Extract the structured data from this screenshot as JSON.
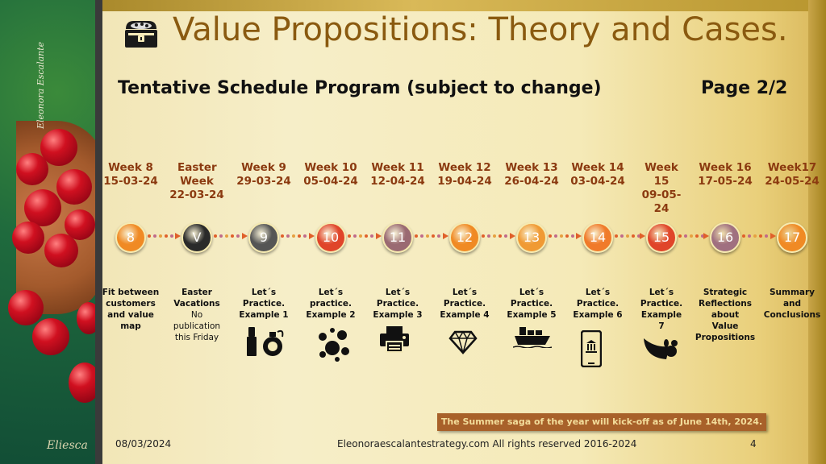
{
  "header": {
    "title": "Value Propositions: Theory and Cases.",
    "title_icon": "treasure-chest-icon",
    "subtitle": "Tentative Schedule Program (subject to change)",
    "page_label": "Page 2/2"
  },
  "sidebar_art": {
    "signature": "Eleonora Escalante",
    "mark": "Eliesca"
  },
  "timeline": [
    {
      "week": "Week 8",
      "date": "15-03-24",
      "badge": "8",
      "color": "#f08a24",
      "lines": [
        "Fit between",
        "customers",
        "and value",
        "map"
      ],
      "icon": ""
    },
    {
      "week": "Easter Week",
      "date": "22-03-24",
      "badge": "V",
      "color": "#2a2a2a",
      "lines": [
        "Easter",
        "Vacations"
      ],
      "note": [
        "No",
        "publication",
        "this Friday"
      ],
      "icon": ""
    },
    {
      "week": "Week 9",
      "date": "29-03-24",
      "badge": "9",
      "color": "#555555",
      "lines": [
        "Let´s",
        "Practice.",
        "Example 1"
      ],
      "icon": "lipstick-perfume-icon"
    },
    {
      "week": "Week 10",
      "date": "05-04-24",
      "badge": "10",
      "color": "#e0452a",
      "lines": [
        "Let´s",
        "practice.",
        "Example 2"
      ],
      "icon": "bubbles-icon"
    },
    {
      "week": "Week 11",
      "date": "12-04-24",
      "badge": "11",
      "color": "#9a6a72",
      "lines": [
        "Let´s",
        "Practice.",
        "Example 3"
      ],
      "icon": "printer-icon"
    },
    {
      "week": "Week 12",
      "date": "19-04-24",
      "badge": "12",
      "color": "#f08a24",
      "lines": [
        "Let´s",
        "Practice.",
        "Example 4"
      ],
      "icon": "diamond-icon"
    },
    {
      "week": "Week 13",
      "date": "26-04-24",
      "badge": "13",
      "color": "#f09a34",
      "lines": [
        "Let´s",
        "Practice.",
        "Example 5"
      ],
      "icon": "cargo-ship-icon"
    },
    {
      "week": "Week 14",
      "date": "03-04-24",
      "badge": "14",
      "color": "#f07a2a",
      "lines": [
        "Let´s",
        "Practice.",
        "Example 6"
      ],
      "icon": "mobile-bank-icon"
    },
    {
      "week": "Week 15",
      "date": "09-05-24",
      "badge": "15",
      "color": "#e0452a",
      "lines": [
        "Let´s",
        "Practice.",
        "Example",
        "7"
      ],
      "icon": "cornucopia-icon"
    },
    {
      "week": "Week 16",
      "date": "17-05-24",
      "badge": "16",
      "color": "#a07080",
      "lines": [
        "Strategic",
        "Reflections",
        "about",
        "Value",
        "Propositions"
      ],
      "icon": ""
    },
    {
      "week": "Week17",
      "date": "24-05-24",
      "badge": "17",
      "color": "#f08a24",
      "lines": [
        "Summary",
        "and",
        "Conclusions"
      ],
      "icon": ""
    }
  ],
  "banner": "The Summer saga of the year will kick-off as of June 14th, 2024.",
  "footer": {
    "date": "08/03/2024",
    "site": "Eleonoraescalantestrategy.com  All rights reserved 2016-2024",
    "page_number": "4"
  }
}
